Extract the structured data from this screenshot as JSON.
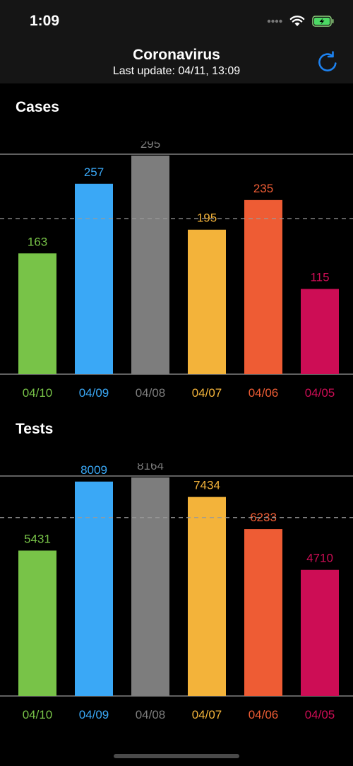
{
  "status": {
    "time": "1:09"
  },
  "nav": {
    "title": "Coronavirus",
    "subtitle": "Last update: 04/11, 13:09",
    "refresh_icon": "refresh-icon"
  },
  "colors": {
    "background": "#000000",
    "bars": [
      "#78c348",
      "#3aa8f6",
      "#7d7d7d",
      "#f3b33a",
      "#ee5c34",
      "#cd0d55"
    ],
    "gridline": "#9a9a9a",
    "average_line": "#9a9a9a",
    "accent": "#1d82f0"
  },
  "sections": {
    "cases": {
      "title": "Cases"
    },
    "tests": {
      "title": "Tests"
    }
  },
  "chart_data": [
    {
      "type": "bar",
      "title": "Cases",
      "categories": [
        "04/10",
        "04/09",
        "04/08",
        "04/07",
        "04/06",
        "04/05"
      ],
      "values": [
        163,
        257,
        295,
        195,
        235,
        115
      ],
      "ylim": [
        0,
        295
      ],
      "average_line": 210,
      "grid": false,
      "data_labels": true
    },
    {
      "type": "bar",
      "title": "Tests",
      "categories": [
        "04/10",
        "04/09",
        "04/08",
        "04/07",
        "04/06",
        "04/05"
      ],
      "values": [
        5431,
        8009,
        8164,
        7434,
        6233,
        4710
      ],
      "ylim": [
        0,
        8164
      ],
      "average_line": 6664,
      "grid": false,
      "data_labels": true
    }
  ]
}
